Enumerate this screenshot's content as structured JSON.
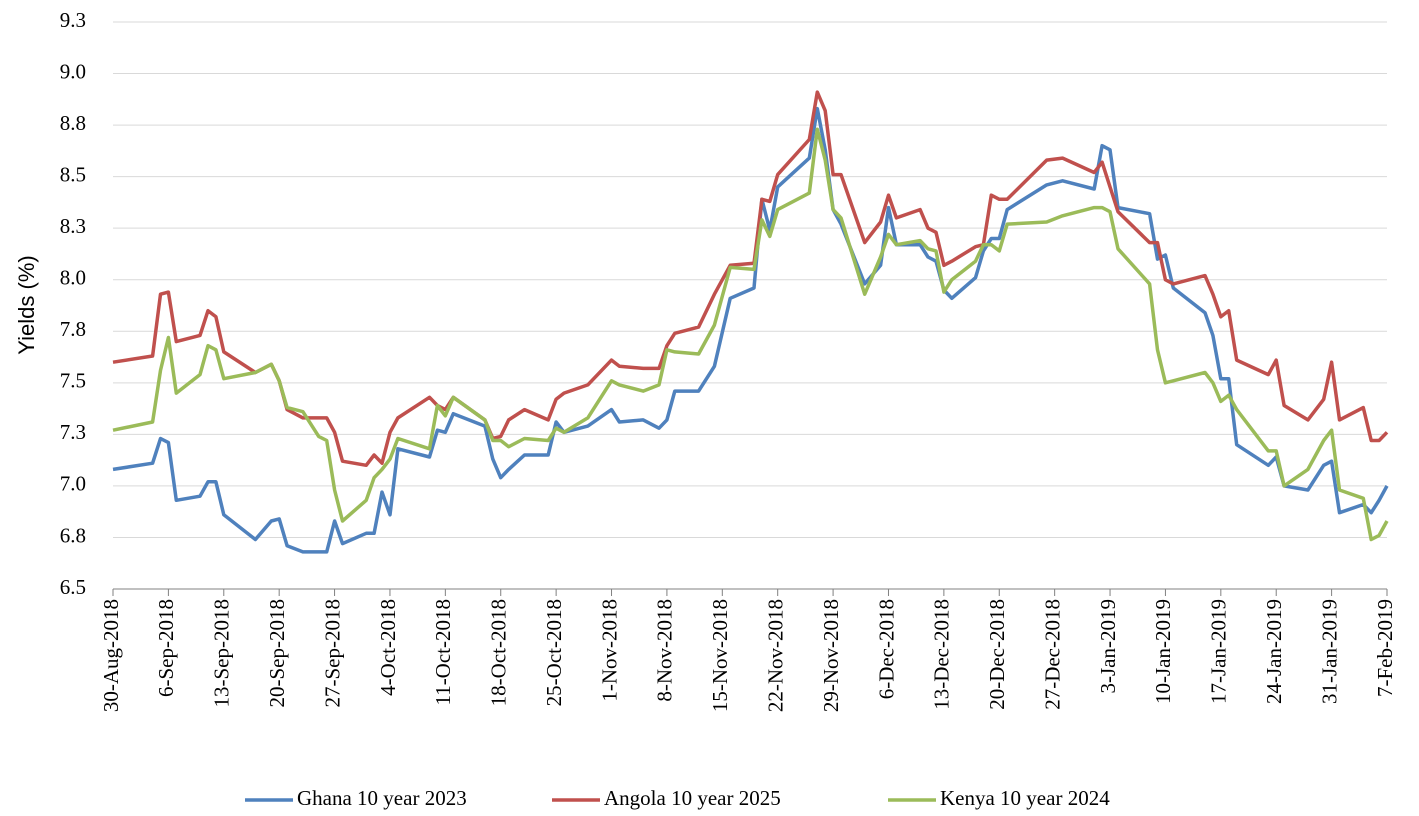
{
  "chart_data": {
    "type": "line",
    "y_label": "Yields (%)",
    "x": [
      "2018-08-30",
      "2018-09-04",
      "2018-09-05",
      "2018-09-06",
      "2018-09-07",
      "2018-09-10",
      "2018-09-11",
      "2018-09-12",
      "2018-09-13",
      "2018-09-17",
      "2018-09-19",
      "2018-09-20",
      "2018-09-21",
      "2018-09-23",
      "2018-09-25",
      "2018-09-26",
      "2018-09-27",
      "2018-09-28",
      "2018-10-01",
      "2018-10-02",
      "2018-10-03",
      "2018-10-04",
      "2018-10-05",
      "2018-10-09",
      "2018-10-10",
      "2018-10-11",
      "2018-10-12",
      "2018-10-16",
      "2018-10-17",
      "2018-10-18",
      "2018-10-19",
      "2018-10-21",
      "2018-10-24",
      "2018-10-25",
      "2018-10-26",
      "2018-10-29",
      "2018-11-01",
      "2018-11-02",
      "2018-11-05",
      "2018-11-07",
      "2018-11-08",
      "2018-11-09",
      "2018-11-12",
      "2018-11-14",
      "2018-11-16",
      "2018-11-19",
      "2018-11-20",
      "2018-11-21",
      "2018-11-22",
      "2018-11-26",
      "2018-11-27",
      "2018-11-28",
      "2018-11-29",
      "2018-11-30",
      "2018-12-03",
      "2018-12-05",
      "2018-12-06",
      "2018-12-07",
      "2018-12-10",
      "2018-12-11",
      "2018-12-12",
      "2018-12-13",
      "2018-12-14",
      "2018-12-17",
      "2018-12-18",
      "2018-12-19",
      "2018-12-20",
      "2018-12-21",
      "2018-12-26",
      "2018-12-28",
      "2019-01-01",
      "2019-01-02",
      "2019-01-03",
      "2019-01-04",
      "2019-01-08",
      "2019-01-09",
      "2019-01-10",
      "2019-01-11",
      "2019-01-15",
      "2019-01-16",
      "2019-01-17",
      "2019-01-18",
      "2019-01-19",
      "2019-01-23",
      "2019-01-24",
      "2019-01-25",
      "2019-01-28",
      "2019-01-30",
      "2019-01-31",
      "2019-02-01",
      "2019-02-04",
      "2019-02-05",
      "2019-02-06",
      "2019-02-07"
    ],
    "series": [
      {
        "name": "Ghana 10 year 2023",
        "color": "#4f81bd",
        "values": [
          7.08,
          7.11,
          7.23,
          7.21,
          6.93,
          6.95,
          7.02,
          7.02,
          6.86,
          6.74,
          6.83,
          6.84,
          6.71,
          6.68,
          6.68,
          6.68,
          6.83,
          6.72,
          6.77,
          6.77,
          6.97,
          6.86,
          7.18,
          7.14,
          7.27,
          7.26,
          7.35,
          7.29,
          7.13,
          7.04,
          7.08,
          7.15,
          7.15,
          7.31,
          7.26,
          7.29,
          7.37,
          7.31,
          7.32,
          7.28,
          7.32,
          7.46,
          7.46,
          7.58,
          7.91,
          7.96,
          8.39,
          8.24,
          8.45,
          8.59,
          8.83,
          8.63,
          8.34,
          8.27,
          7.98,
          8.07,
          8.35,
          8.17,
          8.17,
          8.11,
          8.09,
          7.95,
          7.91,
          8.01,
          8.14,
          8.2,
          8.2,
          8.34,
          8.46,
          8.48,
          8.44,
          8.65,
          8.63,
          8.35,
          8.32,
          8.1,
          8.12,
          7.96,
          7.84,
          7.73,
          7.52,
          7.52,
          7.2,
          7.1,
          7.14,
          7.0,
          6.98,
          7.1,
          7.12,
          6.87,
          6.91,
          6.87,
          6.93,
          7.0
        ]
      },
      {
        "name": "Angola 10 year 2025",
        "color": "#c0504d",
        "values": [
          7.6,
          7.63,
          7.93,
          7.94,
          7.7,
          7.73,
          7.85,
          7.82,
          7.65,
          7.55,
          7.59,
          7.51,
          7.37,
          7.33,
          7.33,
          7.33,
          7.26,
          7.12,
          7.1,
          7.15,
          7.11,
          7.26,
          7.33,
          7.43,
          7.39,
          7.37,
          7.43,
          7.32,
          7.23,
          7.24,
          7.32,
          7.37,
          7.32,
          7.42,
          7.45,
          7.49,
          7.61,
          7.58,
          7.57,
          7.57,
          7.68,
          7.74,
          7.77,
          7.93,
          8.07,
          8.08,
          8.39,
          8.38,
          8.51,
          8.68,
          8.91,
          8.82,
          8.51,
          8.51,
          8.18,
          8.28,
          8.41,
          8.3,
          8.34,
          8.25,
          8.23,
          8.07,
          8.09,
          8.16,
          8.17,
          8.41,
          8.39,
          8.39,
          8.58,
          8.59,
          8.52,
          8.57,
          8.45,
          8.33,
          8.18,
          8.18,
          8.0,
          7.98,
          8.02,
          7.93,
          7.82,
          7.85,
          7.61,
          7.54,
          7.61,
          7.39,
          7.32,
          7.42,
          7.6,
          7.32,
          7.38,
          7.22,
          7.22,
          7.26
        ]
      },
      {
        "name": "Kenya 10 year 2024",
        "color": "#9bbb59",
        "values": [
          7.27,
          7.31,
          7.56,
          7.72,
          7.45,
          7.54,
          7.68,
          7.66,
          7.52,
          7.55,
          7.59,
          7.51,
          7.38,
          7.36,
          7.24,
          7.22,
          6.98,
          6.83,
          6.93,
          7.04,
          7.08,
          7.13,
          7.23,
          7.18,
          7.39,
          7.34,
          7.43,
          7.32,
          7.22,
          7.22,
          7.19,
          7.23,
          7.22,
          7.28,
          7.26,
          7.33,
          7.51,
          7.49,
          7.46,
          7.49,
          7.66,
          7.65,
          7.64,
          7.78,
          8.06,
          8.05,
          8.29,
          8.21,
          8.34,
          8.42,
          8.73,
          8.58,
          8.34,
          8.3,
          7.93,
          8.11,
          8.22,
          8.17,
          8.19,
          8.15,
          8.14,
          7.94,
          8.0,
          8.09,
          8.17,
          8.17,
          8.14,
          8.27,
          8.28,
          8.31,
          8.35,
          8.35,
          8.33,
          8.15,
          7.98,
          7.66,
          7.5,
          7.51,
          7.55,
          7.5,
          7.41,
          7.44,
          7.37,
          7.17,
          7.17,
          7.0,
          7.08,
          7.22,
          7.27,
          6.98,
          6.94,
          6.74,
          6.76,
          6.83
        ]
      }
    ],
    "xlim": [
      "2018-08-30",
      "2019-02-07"
    ],
    "xticks": [
      {
        "value": "2018-08-30",
        "label": "30-Aug-2018"
      },
      {
        "value": "2018-09-06",
        "label": "6-Sep-2018"
      },
      {
        "value": "2018-09-13",
        "label": "13-Sep-2018"
      },
      {
        "value": "2018-09-20",
        "label": "20-Sep-2018"
      },
      {
        "value": "2018-09-27",
        "label": "27-Sep-2018"
      },
      {
        "value": "2018-10-04",
        "label": "4-Oct-2018"
      },
      {
        "value": "2018-10-11",
        "label": "11-Oct-2018"
      },
      {
        "value": "2018-10-18",
        "label": "18-Oct-2018"
      },
      {
        "value": "2018-10-25",
        "label": "25-Oct-2018"
      },
      {
        "value": "2018-11-01",
        "label": "1-Nov-2018"
      },
      {
        "value": "2018-11-08",
        "label": "8-Nov-2018"
      },
      {
        "value": "2018-11-15",
        "label": "15-Nov-2018"
      },
      {
        "value": "2018-11-22",
        "label": "22-Nov-2018"
      },
      {
        "value": "2018-11-29",
        "label": "29-Nov-2018"
      },
      {
        "value": "2018-12-06",
        "label": "6-Dec-2018"
      },
      {
        "value": "2018-12-13",
        "label": "13-Dec-2018"
      },
      {
        "value": "2018-12-20",
        "label": "20-Dec-2018"
      },
      {
        "value": "2018-12-27",
        "label": "27-Dec-2018"
      },
      {
        "value": "2019-01-03",
        "label": "3-Jan-2019"
      },
      {
        "value": "2019-01-10",
        "label": "10-Jan-2019"
      },
      {
        "value": "2019-01-17",
        "label": "17-Jan-2019"
      },
      {
        "value": "2019-01-24",
        "label": "24-Jan-2019"
      },
      {
        "value": "2019-01-31",
        "label": "31-Jan-2019"
      },
      {
        "value": "2019-02-07",
        "label": "7-Feb-2019"
      }
    ],
    "ylim": [
      6.5,
      9.25
    ],
    "yticks": [
      {
        "value": 6.5,
        "label": "6.5"
      },
      {
        "value": 6.75,
        "label": "6.8"
      },
      {
        "value": 7.0,
        "label": "7.0"
      },
      {
        "value": 7.25,
        "label": "7.3"
      },
      {
        "value": 7.5,
        "label": "7.5"
      },
      {
        "value": 7.75,
        "label": "7.8"
      },
      {
        "value": 8.0,
        "label": "8.0"
      },
      {
        "value": 8.25,
        "label": "8.3"
      },
      {
        "value": 8.5,
        "label": "8.5"
      },
      {
        "value": 8.75,
        "label": "8.8"
      },
      {
        "value": 9.0,
        "label": "9.0"
      },
      {
        "value": 9.25,
        "label": "9.3"
      }
    ],
    "grid": true,
    "legend": "bottom"
  }
}
